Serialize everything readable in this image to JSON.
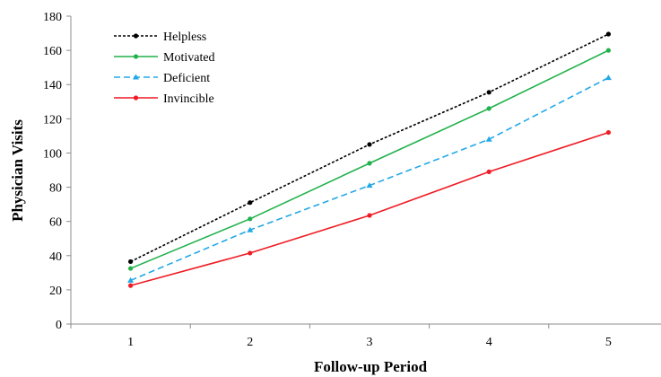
{
  "chart_data": {
    "type": "line",
    "title": "",
    "xlabel": "Follow-up Period",
    "ylabel": "Physician Visits",
    "x": [
      1,
      2,
      3,
      4,
      5
    ],
    "xlim": [
      0.5,
      5.5
    ],
    "ylim": [
      0,
      180
    ],
    "yticks": [
      0,
      20,
      40,
      60,
      80,
      100,
      120,
      140,
      160,
      180
    ],
    "grid": false,
    "legend_position": "top-left",
    "series": [
      {
        "name": "Helpless",
        "values": [
          36.5,
          71,
          105,
          135.5,
          169.5
        ],
        "color": "#000000",
        "line_style": "dotted",
        "marker": "circle"
      },
      {
        "name": "Motivated",
        "values": [
          32.5,
          61.5,
          94,
          126,
          160
        ],
        "color": "#22b14c",
        "line_style": "solid",
        "marker": "circle"
      },
      {
        "name": "Deficient",
        "values": [
          25.5,
          55,
          81,
          108,
          144
        ],
        "color": "#22a8e6",
        "line_style": "dashed",
        "marker": "triangle"
      },
      {
        "name": "Invincible",
        "values": [
          22.5,
          41.5,
          63.5,
          89,
          112
        ],
        "color": "#ee1c24",
        "line_style": "solid",
        "marker": "circle"
      }
    ]
  }
}
